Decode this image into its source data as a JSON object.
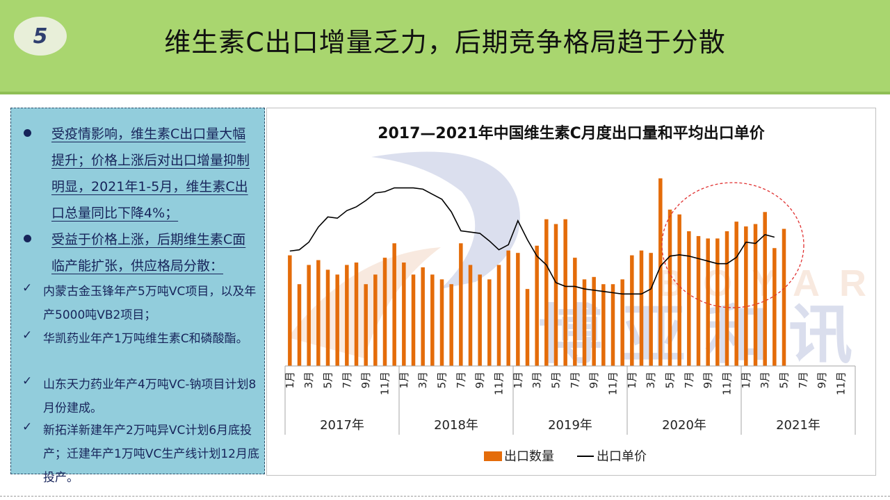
{
  "slide": {
    "number": "5",
    "title": "维生素C出口增量乏力，后期竞争格局趋于分散"
  },
  "bullets": [
    "受疫情影响，维生素C出口量大幅提升；价格上涨后对出口增量抑制明显，2021年1-5月，维生素C出口总量同比下降4%；",
    "受益于价格上涨，后期维生素C面临产能扩张，供应格局分散："
  ],
  "checks": [
    "内蒙古金玉锋年产5万吨VC项目，以及年产5000吨VB2项目；",
    "华凯药业年产1万吨维生素C和磷酸酯。",
    "山东天力药业年产4万吨VC-钠项目计划8月份建成。",
    "新拓洋新建年产2万吨异VC计划6月底投产；迁建年产1万吨VC生产线计划12月底投产。"
  ],
  "watermark": {
    "latin": "BOYAR",
    "chinese": [
      "博",
      "亚",
      "和",
      "讯"
    ]
  },
  "colors": {
    "bar": "#e46c0a",
    "line": "#000000",
    "header": "#a9d66f",
    "panel": "#92cddc",
    "highlight_circle": "#e03030"
  },
  "chart_data": {
    "type": "bar+line",
    "title": "2017—2021年中国维生素C月度出口量和平均出口单价",
    "years": [
      "2017年",
      "2018年",
      "2019年",
      "2020年",
      "2021年"
    ],
    "month_labels": [
      "1月",
      "",
      "3月",
      "",
      "5月",
      "",
      "7月",
      "",
      "9月",
      "",
      "11月",
      ""
    ],
    "series": [
      {
        "name": "出口数量",
        "kind": "bar",
        "values": [
          23,
          17,
          21,
          22,
          20,
          19,
          21,
          21.5,
          17,
          19,
          22.5,
          25.5,
          21.5,
          19,
          20.5,
          19,
          18,
          17,
          25.5,
          21,
          19,
          18,
          21,
          24,
          23.5,
          16,
          25,
          30.5,
          29.5,
          30.5,
          22.5,
          18,
          18.5,
          17,
          17,
          18,
          23,
          24,
          23.5,
          39,
          32.5,
          31.5,
          28,
          27,
          26.5,
          26.5,
          28,
          30,
          29,
          29.5,
          32,
          24.5,
          28.5,
          null,
          null,
          null,
          null,
          null,
          null,
          null
        ]
      },
      {
        "name": "出口单价",
        "kind": "line",
        "values": [
          4.55,
          4.6,
          4.9,
          5.5,
          5.9,
          5.85,
          6.15,
          6.3,
          6.55,
          6.85,
          6.9,
          7.05,
          7.05,
          7.05,
          7.0,
          6.8,
          6.6,
          6.1,
          5.35,
          5.3,
          5.25,
          4.95,
          4.6,
          4.8,
          5.75,
          5.0,
          4.35,
          4.0,
          3.3,
          3.15,
          3.15,
          3.05,
          3.0,
          2.95,
          2.9,
          2.85,
          2.85,
          2.85,
          3.05,
          3.95,
          4.35,
          4.4,
          4.35,
          4.25,
          4.15,
          4.05,
          4.05,
          4.3,
          4.9,
          4.85,
          5.2,
          5.1,
          null,
          null,
          null,
          null,
          null,
          null,
          null,
          null
        ]
      }
    ],
    "ylim_bar": [
      0,
      42
    ],
    "ylim_line": [
      0,
      8
    ],
    "legend": [
      "出口数量",
      "出口单价"
    ],
    "legend_position": "bottom",
    "grid": false,
    "annotation": "dashed red circle highlighting 2020年下半年至2021年"
  }
}
